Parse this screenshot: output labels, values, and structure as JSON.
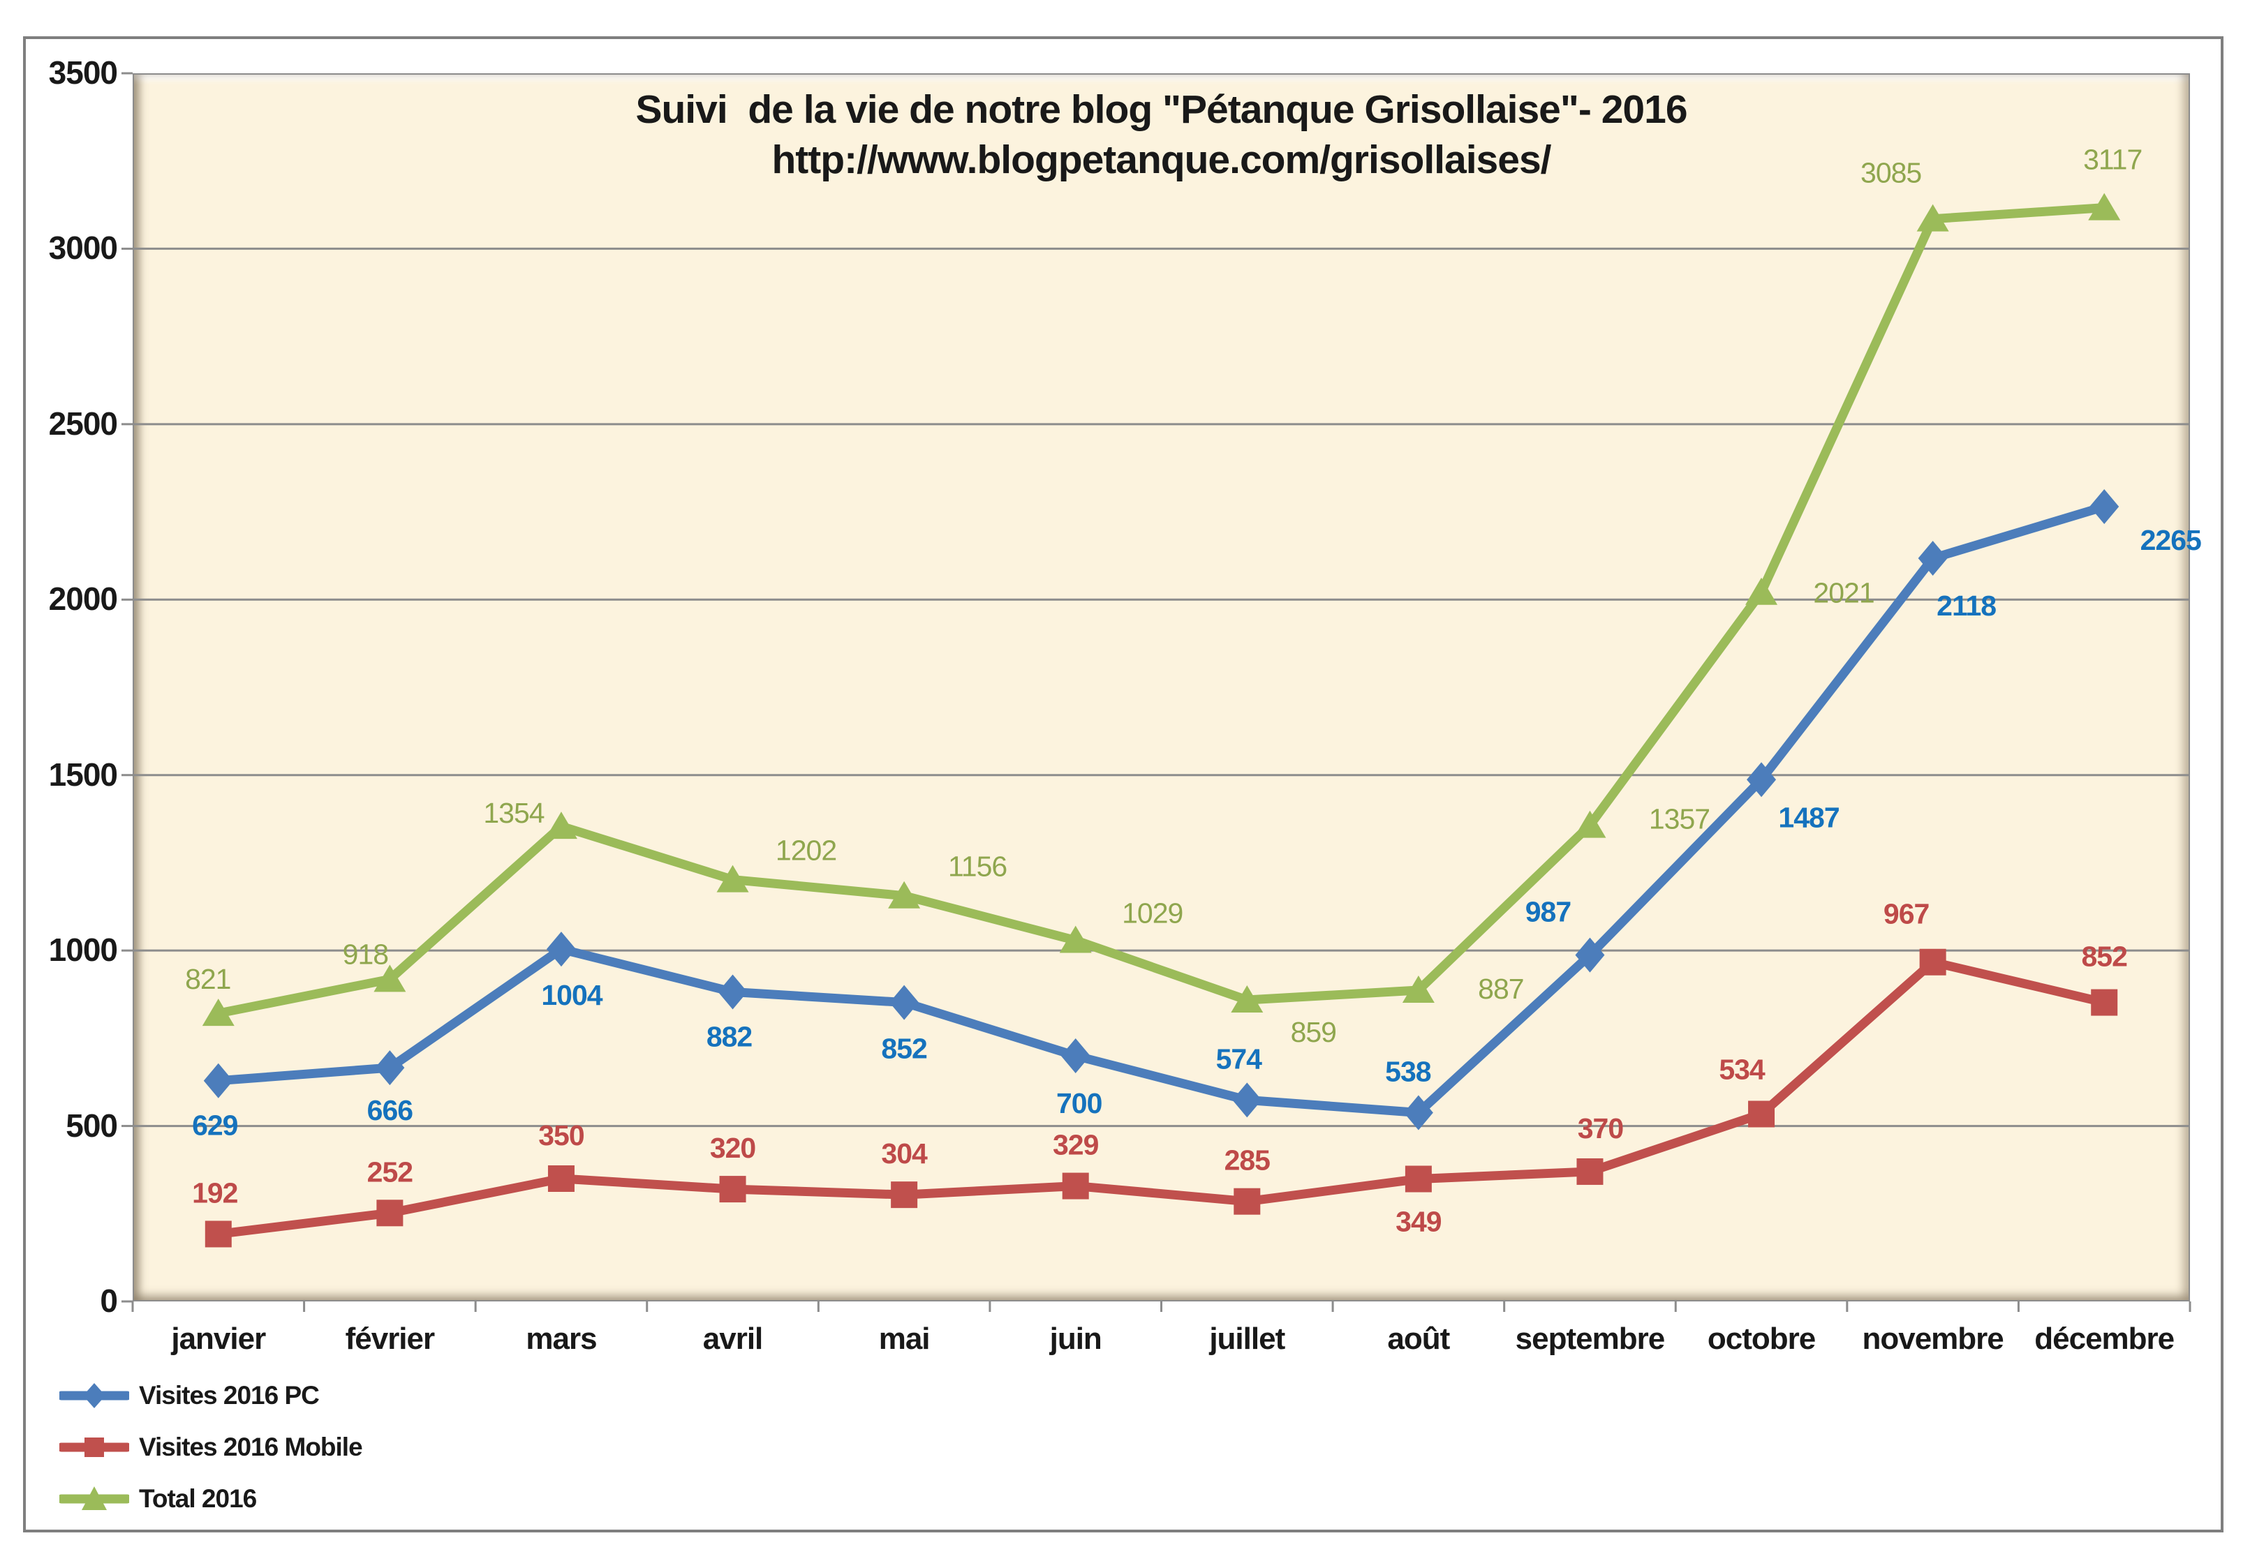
{
  "chart_data": {
    "type": "line",
    "title_line1": "Suivi  de la vie de notre blog \"Pétanque Grisollaise\"- 2016",
    "title_line2": "http://www.blogpetanque.com/grisollaises/",
    "categories": [
      "janvier",
      "février",
      "mars",
      "avril",
      "mai",
      "juin",
      "juillet",
      "août",
      "septembre",
      "octobre",
      "novembre",
      "décembre"
    ],
    "series": [
      {
        "name": "Visites 2016 PC",
        "marker": "diamond",
        "color": "#4c7dbb",
        "label_color": "#1572bd",
        "bold_labels": true,
        "values": [
          629,
          666,
          1004,
          882,
          852,
          700,
          574,
          538,
          987,
          1487,
          2118,
          2265
        ],
        "label_offsets": [
          [
            -5,
            78
          ],
          [
            0,
            75
          ],
          [
            15,
            80
          ],
          [
            -5,
            78
          ],
          [
            0,
            80
          ],
          [
            5,
            82
          ],
          [
            -12,
            -45
          ],
          [
            -15,
            -45
          ],
          [
            -60,
            -48
          ],
          [
            68,
            68
          ],
          [
            48,
            82
          ],
          [
            95,
            62
          ]
        ]
      },
      {
        "name": "Visites 2016 Mobile",
        "marker": "square",
        "color": "#c0504d",
        "label_color": "#be4a49",
        "bold_labels": true,
        "values": [
          192,
          252,
          350,
          320,
          304,
          329,
          285,
          349,
          370,
          534,
          967,
          852
        ],
        "label_offsets": [
          [
            -5,
            -45
          ],
          [
            0,
            -45
          ],
          [
            0,
            -48
          ],
          [
            0,
            -45
          ],
          [
            0,
            -45
          ],
          [
            0,
            -45
          ],
          [
            0,
            -45
          ],
          [
            0,
            75
          ],
          [
            15,
            -48
          ],
          [
            -28,
            -50
          ],
          [
            -38,
            -55
          ],
          [
            0,
            -52
          ]
        ]
      },
      {
        "name": "Total 2016",
        "marker": "triangle",
        "color": "#9bbb59",
        "label_color": "#8fa64e",
        "bold_labels": false,
        "values": [
          821,
          918,
          1354,
          1202,
          1156,
          1029,
          859,
          887,
          1357,
          2021,
          3085,
          3117
        ],
        "label_offsets": [
          [
            -15,
            -35
          ],
          [
            -35,
            -22
          ],
          [
            -68,
            -5
          ],
          [
            105,
            -28
          ],
          [
            105,
            -28
          ],
          [
            110,
            -25
          ],
          [
            95,
            60
          ],
          [
            118,
            12
          ],
          [
            128,
            5
          ],
          [
            118,
            15
          ],
          [
            -60,
            -52
          ],
          [
            12,
            -55
          ]
        ]
      }
    ],
    "y_axis": {
      "min": 0,
      "max": 3500,
      "step": 500,
      "tick_labels": [
        "0",
        "500",
        "1000",
        "1500",
        "2000",
        "2500",
        "3000",
        "3500"
      ]
    },
    "legend": [
      "Visites 2016 PC",
      "Visites 2016 Mobile",
      "Total 2016"
    ],
    "grid": true,
    "legend_position": "bottom-left",
    "colors": {
      "plot_bg": "#fcf3de",
      "grid": "#8c8c8c",
      "outer_border": "#7f7f7f",
      "text": "#191919"
    }
  }
}
